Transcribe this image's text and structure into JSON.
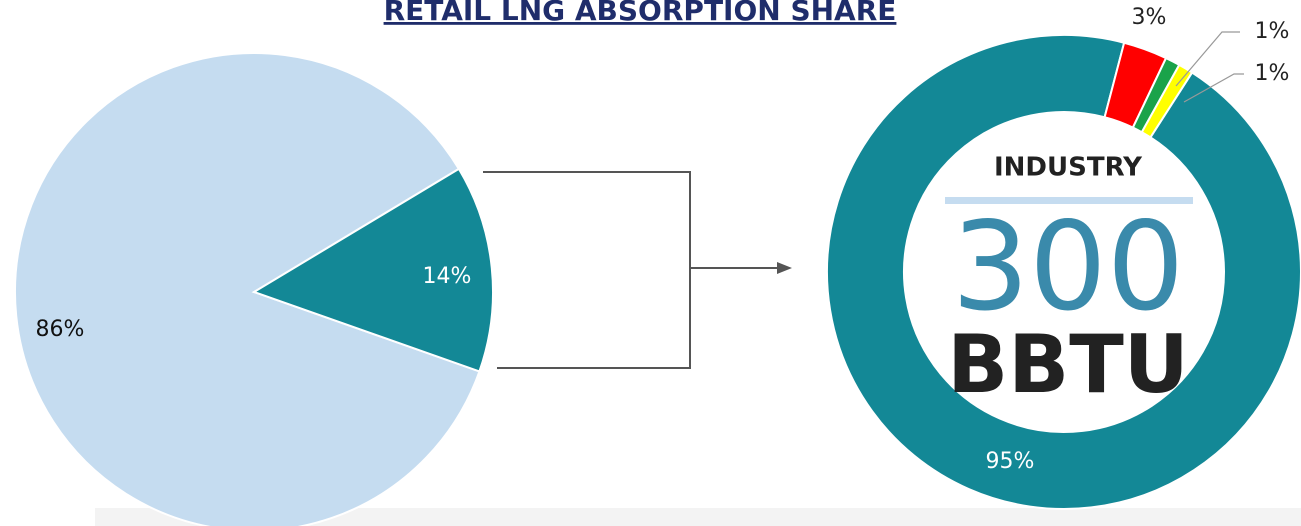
{
  "chart_data": [
    {
      "type": "pie",
      "title": "RETAIL LNG ABSORPTION SHARE",
      "values": [
        86,
        14
      ],
      "value_labels": [
        "86%",
        "14%"
      ],
      "colors": [
        "#c5dcf0",
        "#138896"
      ]
    },
    {
      "type": "donut",
      "values": [
        95,
        3,
        1,
        1
      ],
      "value_labels": [
        "95%",
        "3%",
        "1%",
        "1%"
      ],
      "colors": [
        "#138896",
        "#ff0000",
        "#1aa34a",
        "#ffff00"
      ],
      "center_label": {
        "heading": "INDUSTRY",
        "value": 300,
        "unit": "BBTU"
      }
    }
  ]
}
